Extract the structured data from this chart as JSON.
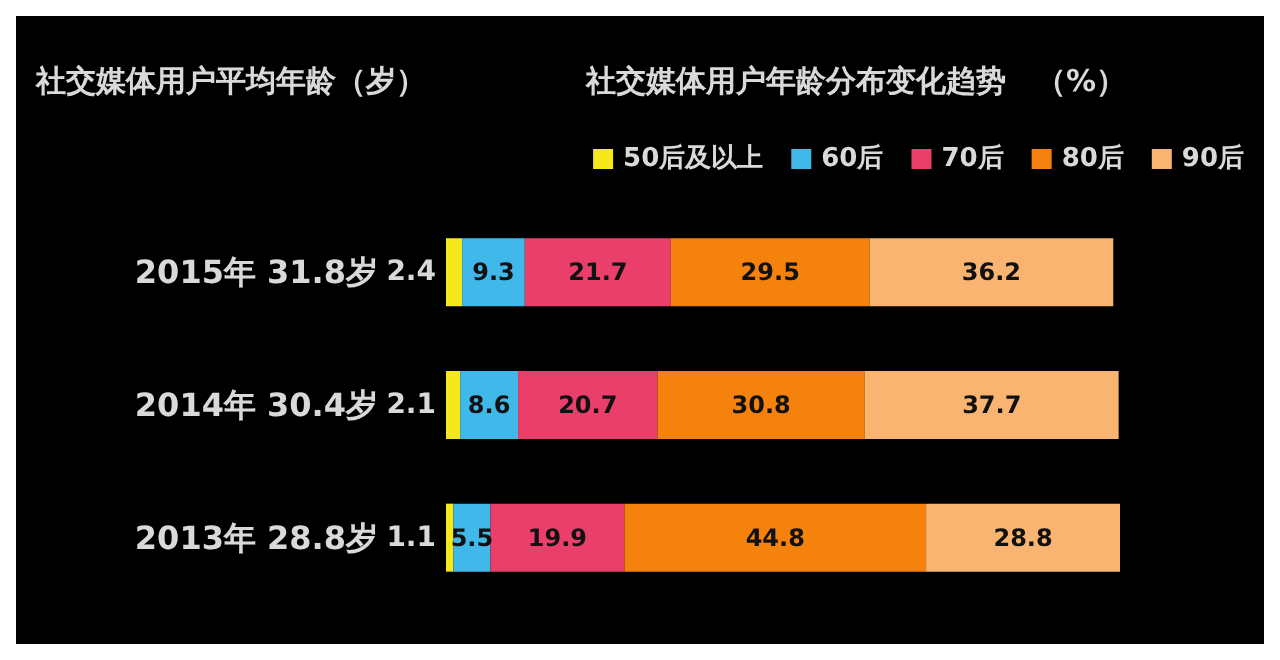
{
  "chart_data": {
    "type": "bar",
    "orientation": "horizontal",
    "stacked": true,
    "data_labels": true,
    "legend": "top right",
    "tick_labels": "y",
    "title": "社交媒体用户年龄分布变化趋势　（%）",
    "ylabel": "社交媒体用户平均年龄（岁）",
    "categories": [
      "2015年 31.8岁",
      "2014年 30.4岁",
      "2013年 28.8岁"
    ],
    "series": [
      {
        "name": "50后及以上",
        "color": "#f5e81c",
        "values": [
          2.4,
          2.1,
          1.1
        ]
      },
      {
        "name": "60后",
        "color": "#41b8ea",
        "values": [
          9.3,
          8.6,
          5.5
        ]
      },
      {
        "name": "70后",
        "color": "#ea3f6a",
        "values": [
          21.7,
          20.7,
          19.9
        ]
      },
      {
        "name": "80后",
        "color": "#f5820c",
        "values": [
          29.5,
          30.8,
          44.8
        ]
      },
      {
        "name": "90后",
        "color": "#f9b472",
        "values": [
          36.2,
          37.7,
          28.8
        ]
      }
    ]
  }
}
